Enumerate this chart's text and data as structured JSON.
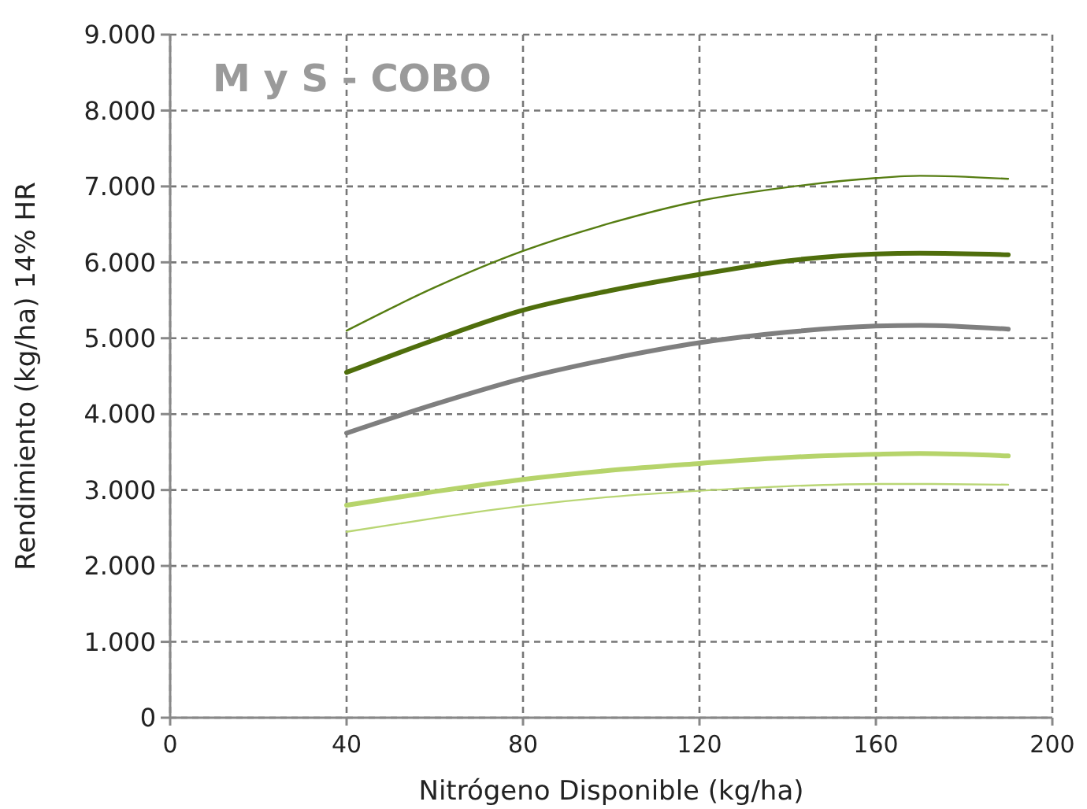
{
  "chart_data": {
    "type": "line",
    "title": "M y S - COBO",
    "xlabel": "Nitrógeno Disponible (kg/ha)",
    "ylabel": "Rendimiento (kg/ha) 14% HR",
    "x": [
      40,
      60,
      80,
      100,
      120,
      140,
      160,
      170,
      190
    ],
    "series": [
      {
        "color": "#567d12",
        "values": [
          5100,
          5670,
          6150,
          6520,
          6810,
          6990,
          7110,
          7140,
          7100
        ]
      },
      {
        "color": "#4f6e0c",
        "values": [
          4550,
          4980,
          5370,
          5630,
          5840,
          6020,
          6110,
          6120,
          6100
        ]
      },
      {
        "color": "#7f7f7f",
        "values": [
          3750,
          4130,
          4470,
          4730,
          4940,
          5080,
          5160,
          5170,
          5120
        ]
      },
      {
        "color": "#b6d46b",
        "values": [
          2800,
          2980,
          3140,
          3260,
          3350,
          3430,
          3470,
          3480,
          3450
        ]
      },
      {
        "color": "#b9d674",
        "values": [
          2450,
          2630,
          2790,
          2910,
          2990,
          3050,
          3080,
          3080,
          3070
        ]
      }
    ],
    "xlim": [
      0,
      200
    ],
    "xticks": [
      0,
      40,
      80,
      120,
      160,
      200
    ],
    "ylim": [
      0,
      9000
    ],
    "yticks": [
      {
        "value": 0,
        "label": "0"
      },
      {
        "value": 1000,
        "label": "1.000"
      },
      {
        "value": 2000,
        "label": "2.000"
      },
      {
        "value": 3000,
        "label": "3.000"
      },
      {
        "value": 4000,
        "label": "4.000"
      },
      {
        "value": 5000,
        "label": "5.000"
      },
      {
        "value": 6000,
        "label": "6.000"
      },
      {
        "value": 7000,
        "label": "7.000"
      },
      {
        "value": 8000,
        "label": "8.000"
      },
      {
        "value": 9000,
        "label": "9.000"
      }
    ],
    "grid": true,
    "marker": "none",
    "line_style": "solid"
  }
}
